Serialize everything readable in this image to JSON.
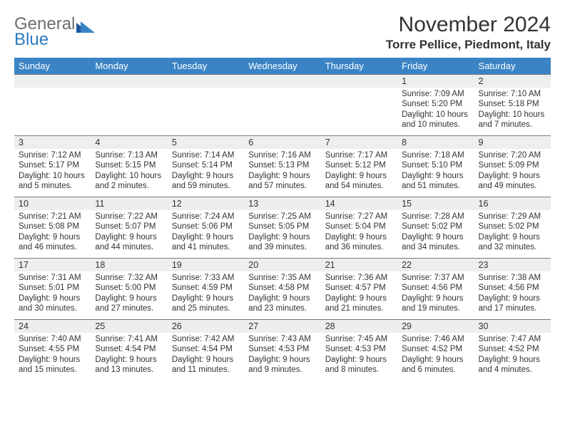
{
  "logo": {
    "general": "General",
    "blue": "Blue"
  },
  "title": "November 2024",
  "location": "Torre Pellice, Piedmont, Italy",
  "colors": {
    "header_bg": "#3a84c5",
    "header_fg": "#ffffff",
    "daynum_bg": "#eceeef",
    "border": "#7a7a7a",
    "text": "#333333",
    "logo_gray": "#6d6e70",
    "logo_blue": "#2b7bbf"
  },
  "weekdays": [
    "Sunday",
    "Monday",
    "Tuesday",
    "Wednesday",
    "Thursday",
    "Friday",
    "Saturday"
  ],
  "weeks": [
    [
      null,
      null,
      null,
      null,
      null,
      {
        "n": "1",
        "sr": "7:09 AM",
        "ss": "5:20 PM",
        "dl": "10 hours and 10 minutes."
      },
      {
        "n": "2",
        "sr": "7:10 AM",
        "ss": "5:18 PM",
        "dl": "10 hours and 7 minutes."
      }
    ],
    [
      {
        "n": "3",
        "sr": "7:12 AM",
        "ss": "5:17 PM",
        "dl": "10 hours and 5 minutes."
      },
      {
        "n": "4",
        "sr": "7:13 AM",
        "ss": "5:15 PM",
        "dl": "10 hours and 2 minutes."
      },
      {
        "n": "5",
        "sr": "7:14 AM",
        "ss": "5:14 PM",
        "dl": "9 hours and 59 minutes."
      },
      {
        "n": "6",
        "sr": "7:16 AM",
        "ss": "5:13 PM",
        "dl": "9 hours and 57 minutes."
      },
      {
        "n": "7",
        "sr": "7:17 AM",
        "ss": "5:12 PM",
        "dl": "9 hours and 54 minutes."
      },
      {
        "n": "8",
        "sr": "7:18 AM",
        "ss": "5:10 PM",
        "dl": "9 hours and 51 minutes."
      },
      {
        "n": "9",
        "sr": "7:20 AM",
        "ss": "5:09 PM",
        "dl": "9 hours and 49 minutes."
      }
    ],
    [
      {
        "n": "10",
        "sr": "7:21 AM",
        "ss": "5:08 PM",
        "dl": "9 hours and 46 minutes."
      },
      {
        "n": "11",
        "sr": "7:22 AM",
        "ss": "5:07 PM",
        "dl": "9 hours and 44 minutes."
      },
      {
        "n": "12",
        "sr": "7:24 AM",
        "ss": "5:06 PM",
        "dl": "9 hours and 41 minutes."
      },
      {
        "n": "13",
        "sr": "7:25 AM",
        "ss": "5:05 PM",
        "dl": "9 hours and 39 minutes."
      },
      {
        "n": "14",
        "sr": "7:27 AM",
        "ss": "5:04 PM",
        "dl": "9 hours and 36 minutes."
      },
      {
        "n": "15",
        "sr": "7:28 AM",
        "ss": "5:02 PM",
        "dl": "9 hours and 34 minutes."
      },
      {
        "n": "16",
        "sr": "7:29 AM",
        "ss": "5:02 PM",
        "dl": "9 hours and 32 minutes."
      }
    ],
    [
      {
        "n": "17",
        "sr": "7:31 AM",
        "ss": "5:01 PM",
        "dl": "9 hours and 30 minutes."
      },
      {
        "n": "18",
        "sr": "7:32 AM",
        "ss": "5:00 PM",
        "dl": "9 hours and 27 minutes."
      },
      {
        "n": "19",
        "sr": "7:33 AM",
        "ss": "4:59 PM",
        "dl": "9 hours and 25 minutes."
      },
      {
        "n": "20",
        "sr": "7:35 AM",
        "ss": "4:58 PM",
        "dl": "9 hours and 23 minutes."
      },
      {
        "n": "21",
        "sr": "7:36 AM",
        "ss": "4:57 PM",
        "dl": "9 hours and 21 minutes."
      },
      {
        "n": "22",
        "sr": "7:37 AM",
        "ss": "4:56 PM",
        "dl": "9 hours and 19 minutes."
      },
      {
        "n": "23",
        "sr": "7:38 AM",
        "ss": "4:56 PM",
        "dl": "9 hours and 17 minutes."
      }
    ],
    [
      {
        "n": "24",
        "sr": "7:40 AM",
        "ss": "4:55 PM",
        "dl": "9 hours and 15 minutes."
      },
      {
        "n": "25",
        "sr": "7:41 AM",
        "ss": "4:54 PM",
        "dl": "9 hours and 13 minutes."
      },
      {
        "n": "26",
        "sr": "7:42 AM",
        "ss": "4:54 PM",
        "dl": "9 hours and 11 minutes."
      },
      {
        "n": "27",
        "sr": "7:43 AM",
        "ss": "4:53 PM",
        "dl": "9 hours and 9 minutes."
      },
      {
        "n": "28",
        "sr": "7:45 AM",
        "ss": "4:53 PM",
        "dl": "9 hours and 8 minutes."
      },
      {
        "n": "29",
        "sr": "7:46 AM",
        "ss": "4:52 PM",
        "dl": "9 hours and 6 minutes."
      },
      {
        "n": "30",
        "sr": "7:47 AM",
        "ss": "4:52 PM",
        "dl": "9 hours and 4 minutes."
      }
    ]
  ],
  "labels": {
    "sunrise": "Sunrise:",
    "sunset": "Sunset:",
    "daylight": "Daylight:"
  }
}
